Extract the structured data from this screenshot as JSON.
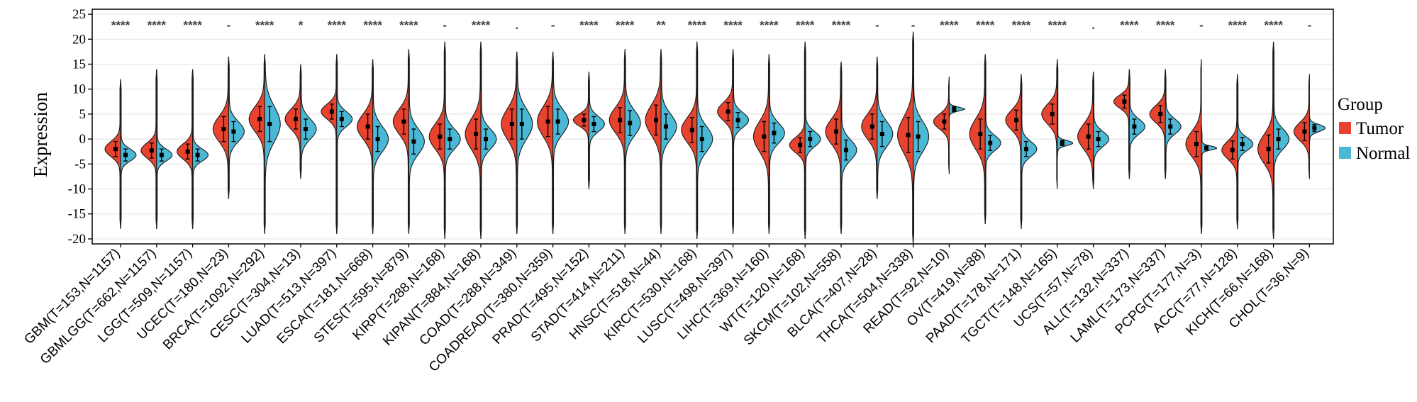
{
  "chart_data": {
    "type": "split-violin",
    "ylabel": "Expression",
    "ylim": [
      -21,
      26
    ],
    "yticks": [
      -20,
      -15,
      -10,
      -5,
      0,
      5,
      10,
      15,
      20,
      25
    ],
    "grid": true,
    "legend": {
      "title": "Group",
      "placement": "right",
      "entries": [
        {
          "name": "Tumor",
          "color": "#E8432E"
        },
        {
          "name": "Normal",
          "color": "#4BB8D6"
        }
      ]
    },
    "categories": [
      "GBM(T=153,N=1157)",
      "GBMLGG(T=662,N=1157)",
      "LGG(T=509,N=1157)",
      "UCEC(T=180,N=23)",
      "BRCA(T=1092,N=292)",
      "CESC(T=304,N=13)",
      "LUAD(T=513,N=397)",
      "ESCA(T=181,N=668)",
      "STES(T=595,N=879)",
      "KIRP(T=288,N=168)",
      "KIPAN(T=884,N=168)",
      "COAD(T=288,N=349)",
      "COADREAD(T=380,N=359)",
      "PRAD(T=495,N=152)",
      "STAD(T=414,N=211)",
      "HNSC(T=518,N=44)",
      "KIRC(T=530,N=168)",
      "LUSC(T=498,N=397)",
      "LIHC(T=369,N=160)",
      "WT(T=120,N=168)",
      "SKCM(T=102,N=558)",
      "BLCA(T=407,N=28)",
      "THCA(T=504,N=338)",
      "READ(T=92,N=10)",
      "OV(T=419,N=88)",
      "PAAD(T=178,N=171)",
      "TGCT(T=148,N=165)",
      "UCS(T=57,N=78)",
      "ALL(T=132,N=337)",
      "LAML(T=173,N=337)",
      "PCPG(T=177,N=3)",
      "ACC(T=77,N=128)",
      "KICH(T=66,N=168)",
      "CHOL(T=36,N=9)"
    ],
    "significance": [
      "****",
      "****",
      "****",
      "-",
      "****",
      "*",
      "****",
      "****",
      "****",
      "-",
      "****",
      ".",
      "-",
      "****",
      "****",
      "**",
      "****",
      "****",
      "****",
      "****",
      "****",
      "-",
      "-",
      "****",
      "****",
      "****",
      "****",
      ".",
      "****",
      "****",
      "-",
      "****",
      "****",
      "-"
    ],
    "series": [
      {
        "name": "Tumor",
        "color": "#E8432E",
        "mean": [
          -2,
          -2.3,
          -2.5,
          2,
          4,
          4,
          5.5,
          2.5,
          3.5,
          0.5,
          1,
          3,
          3.5,
          3.8,
          3.8,
          3.8,
          1.8,
          5.5,
          0.5,
          -1.2,
          1.5,
          2.5,
          0.8,
          3.5,
          1,
          3.8,
          5,
          0.5,
          7.5,
          5,
          -1,
          -2.2,
          -2,
          1.5
        ],
        "sd": [
          1.5,
          1.5,
          1.5,
          2.5,
          2.5,
          2,
          1.5,
          2.5,
          2.5,
          2.5,
          3,
          3,
          3,
          1.2,
          2.5,
          3,
          2.5,
          1.8,
          3,
          1.5,
          2.5,
          2.5,
          3.5,
          1.5,
          3,
          2,
          2,
          2.5,
          1.3,
          1.7,
          2.5,
          1.8,
          2.8,
          1.8
        ],
        "min": [
          -18,
          -18,
          -18,
          -12,
          -19,
          -8,
          -19,
          -19,
          -19,
          -20,
          -20,
          -19,
          -19,
          -10,
          -19,
          -19,
          -20,
          -19,
          -19,
          -20,
          -19,
          -12,
          -21,
          -7,
          -17,
          -18,
          -10,
          -10,
          -8,
          -8,
          -19,
          -18,
          -20,
          -8
        ],
        "max": [
          12,
          14,
          14,
          16.5,
          17,
          15,
          17,
          16,
          18,
          19.5,
          19.5,
          17.5,
          17.5,
          13.5,
          18,
          18,
          19.5,
          18,
          17,
          19.5,
          15.5,
          16.5,
          21.5,
          12.5,
          17,
          13,
          16,
          13.5,
          14,
          14,
          16,
          13,
          19.5,
          13
        ]
      },
      {
        "name": "Normal",
        "color": "#4BB8D6",
        "mean": [
          -3.2,
          -3.2,
          -3.2,
          1.5,
          3,
          2,
          4,
          0,
          -0.5,
          0,
          0,
          3,
          3.5,
          3,
          3.2,
          2.5,
          0,
          3.8,
          1.2,
          0,
          -2.2,
          1,
          0.5,
          6,
          -0.8,
          -2,
          -0.8,
          0,
          2.5,
          2.5,
          -1.8,
          -1,
          0,
          2.2
        ],
        "sd": [
          1.2,
          1.2,
          1.2,
          2,
          3.5,
          2,
          1.5,
          2.5,
          2.5,
          2,
          2,
          3,
          2.5,
          1.5,
          2.5,
          2.5,
          2.5,
          1.5,
          2,
          1.5,
          2,
          2.5,
          3,
          0.5,
          1.5,
          1.5,
          0.5,
          1.5,
          1.5,
          1.5,
          0.4,
          1.3,
          2,
          0.7
        ],
        "min": [
          -18,
          -18,
          -18,
          -12,
          -19,
          -8,
          -19,
          -19,
          -19,
          -20,
          -20,
          -19,
          -19,
          -10,
          -19,
          -19,
          -20,
          -19,
          -19,
          -20,
          -19,
          -12,
          -21,
          4,
          -17,
          -18,
          -4,
          -10,
          -8,
          -8,
          -19,
          -18,
          -20,
          -1
        ],
        "max": [
          12,
          14,
          14,
          16.5,
          17,
          15,
          17,
          16,
          18,
          19.5,
          19.5,
          17.5,
          17.5,
          13.5,
          18,
          18,
          19.5,
          18,
          17,
          19.5,
          15.5,
          16.5,
          21.5,
          8,
          17,
          13,
          16,
          13.5,
          14,
          14,
          3,
          13,
          19.5,
          5
        ]
      }
    ]
  }
}
